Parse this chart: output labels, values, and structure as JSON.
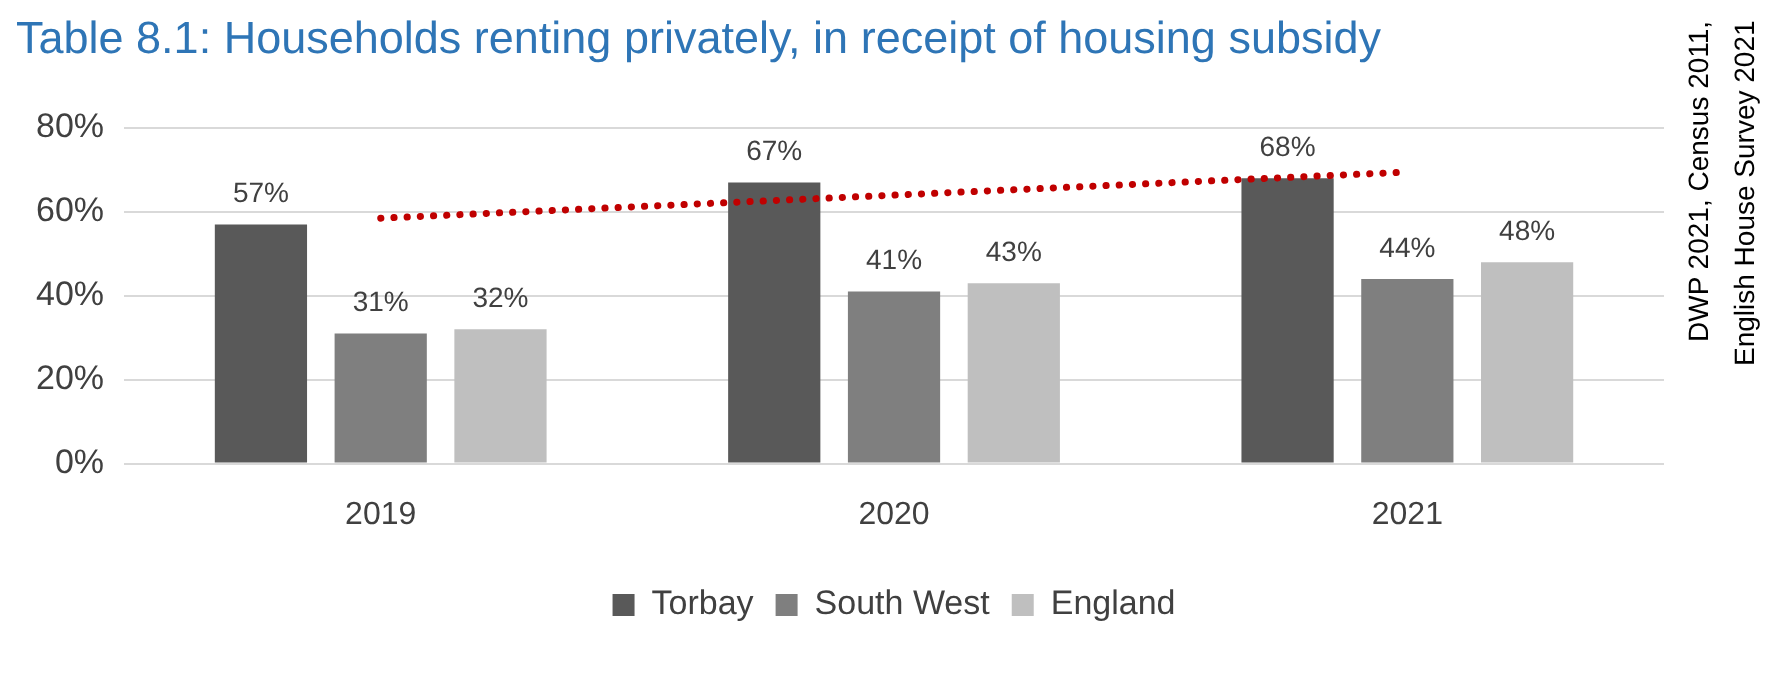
{
  "chart_data": {
    "type": "bar",
    "title": "Table 8.1: Households renting privately, in receipt of housing subsidy",
    "categories": [
      "2019",
      "2020",
      "2021"
    ],
    "series": [
      {
        "name": "Torbay",
        "color": "#595959",
        "values": [
          57,
          67,
          68
        ],
        "value_labels": [
          "57%",
          "67%",
          "68%"
        ]
      },
      {
        "name": "South West",
        "color": "#7f7f7f",
        "values": [
          31,
          41,
          44
        ],
        "value_labels": [
          "31%",
          "41%",
          "44%"
        ]
      },
      {
        "name": "England",
        "color": "#bfbfbf",
        "values": [
          32,
          43,
          48
        ],
        "value_labels": [
          "32%",
          "43%",
          "48%"
        ]
      },
      {
        "type": "line",
        "values": [
          58.5,
          64,
          69.5
        ],
        "color": "#c00000",
        "line_style": "dotted",
        "marker": "none"
      }
    ],
    "ylim": [
      0,
      80
    ],
    "yticks": [
      {
        "value": 0,
        "label": "0%"
      },
      {
        "value": 20,
        "label": "20%"
      },
      {
        "value": 40,
        "label": "40%"
      },
      {
        "value": 60,
        "label": "60%"
      },
      {
        "value": 80,
        "label": "80%"
      }
    ],
    "grid": "y",
    "legend": "bottom",
    "annotations": [
      "DWP 2021, Census 2011, English House Survey 2021"
    ]
  }
}
